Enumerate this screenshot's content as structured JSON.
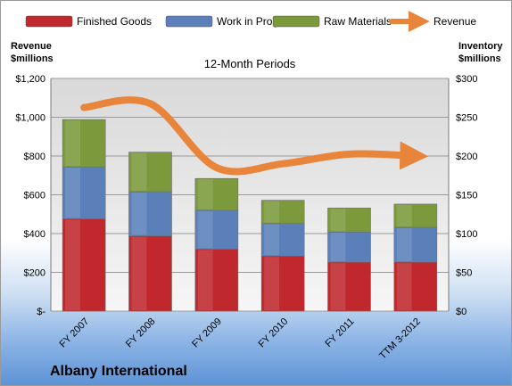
{
  "chart_data": {
    "type": "bar",
    "stacked": true,
    "subtitle": "12-Month Periods",
    "company": "Albany International",
    "categories": [
      "FY 2007",
      "FY 2008",
      "FY 2009",
      "FY 2010",
      "FY 2011",
      "TTM 3-2012"
    ],
    "left_axis": {
      "title_line1": "Revenue",
      "title_line2": "$millions",
      "ylim": [
        0,
        1200
      ],
      "ticks": [
        0,
        200,
        400,
        600,
        800,
        1000,
        1200
      ],
      "tick_labels": [
        "$-",
        "$200",
        "$400",
        "$600",
        "$800",
        "$1,000",
        "$1,200"
      ]
    },
    "right_axis": {
      "title_line1": "Inventory",
      "title_line2": "$millions",
      "ylim": [
        0,
        300
      ],
      "ticks": [
        0,
        50,
        100,
        150,
        200,
        250,
        300
      ],
      "tick_labels": [
        "$0",
        "$50",
        "$100",
        "$150",
        "$200",
        "$250",
        "$300"
      ]
    },
    "series": [
      {
        "name": "Finished Goods",
        "axis": "right",
        "kind": "bar",
        "color": "#c0282d",
        "values": [
          119,
          97,
          80,
          71,
          63,
          63
        ]
      },
      {
        "name": "Work in Progress",
        "axis": "right",
        "kind": "bar",
        "color": "#5b80b9",
        "values": [
          67,
          57,
          50,
          42,
          39,
          45
        ]
      },
      {
        "name": "Raw Materials",
        "axis": "right",
        "kind": "bar",
        "color": "#7c9a3c",
        "values": [
          61,
          51,
          41,
          30,
          31,
          30
        ]
      },
      {
        "name": "Revenue",
        "axis": "left",
        "kind": "line",
        "color": "#e9853a",
        "values": [
          1050,
          1070,
          740,
          760,
          810,
          800
        ]
      }
    ],
    "grid": true,
    "legend_position": "top"
  }
}
